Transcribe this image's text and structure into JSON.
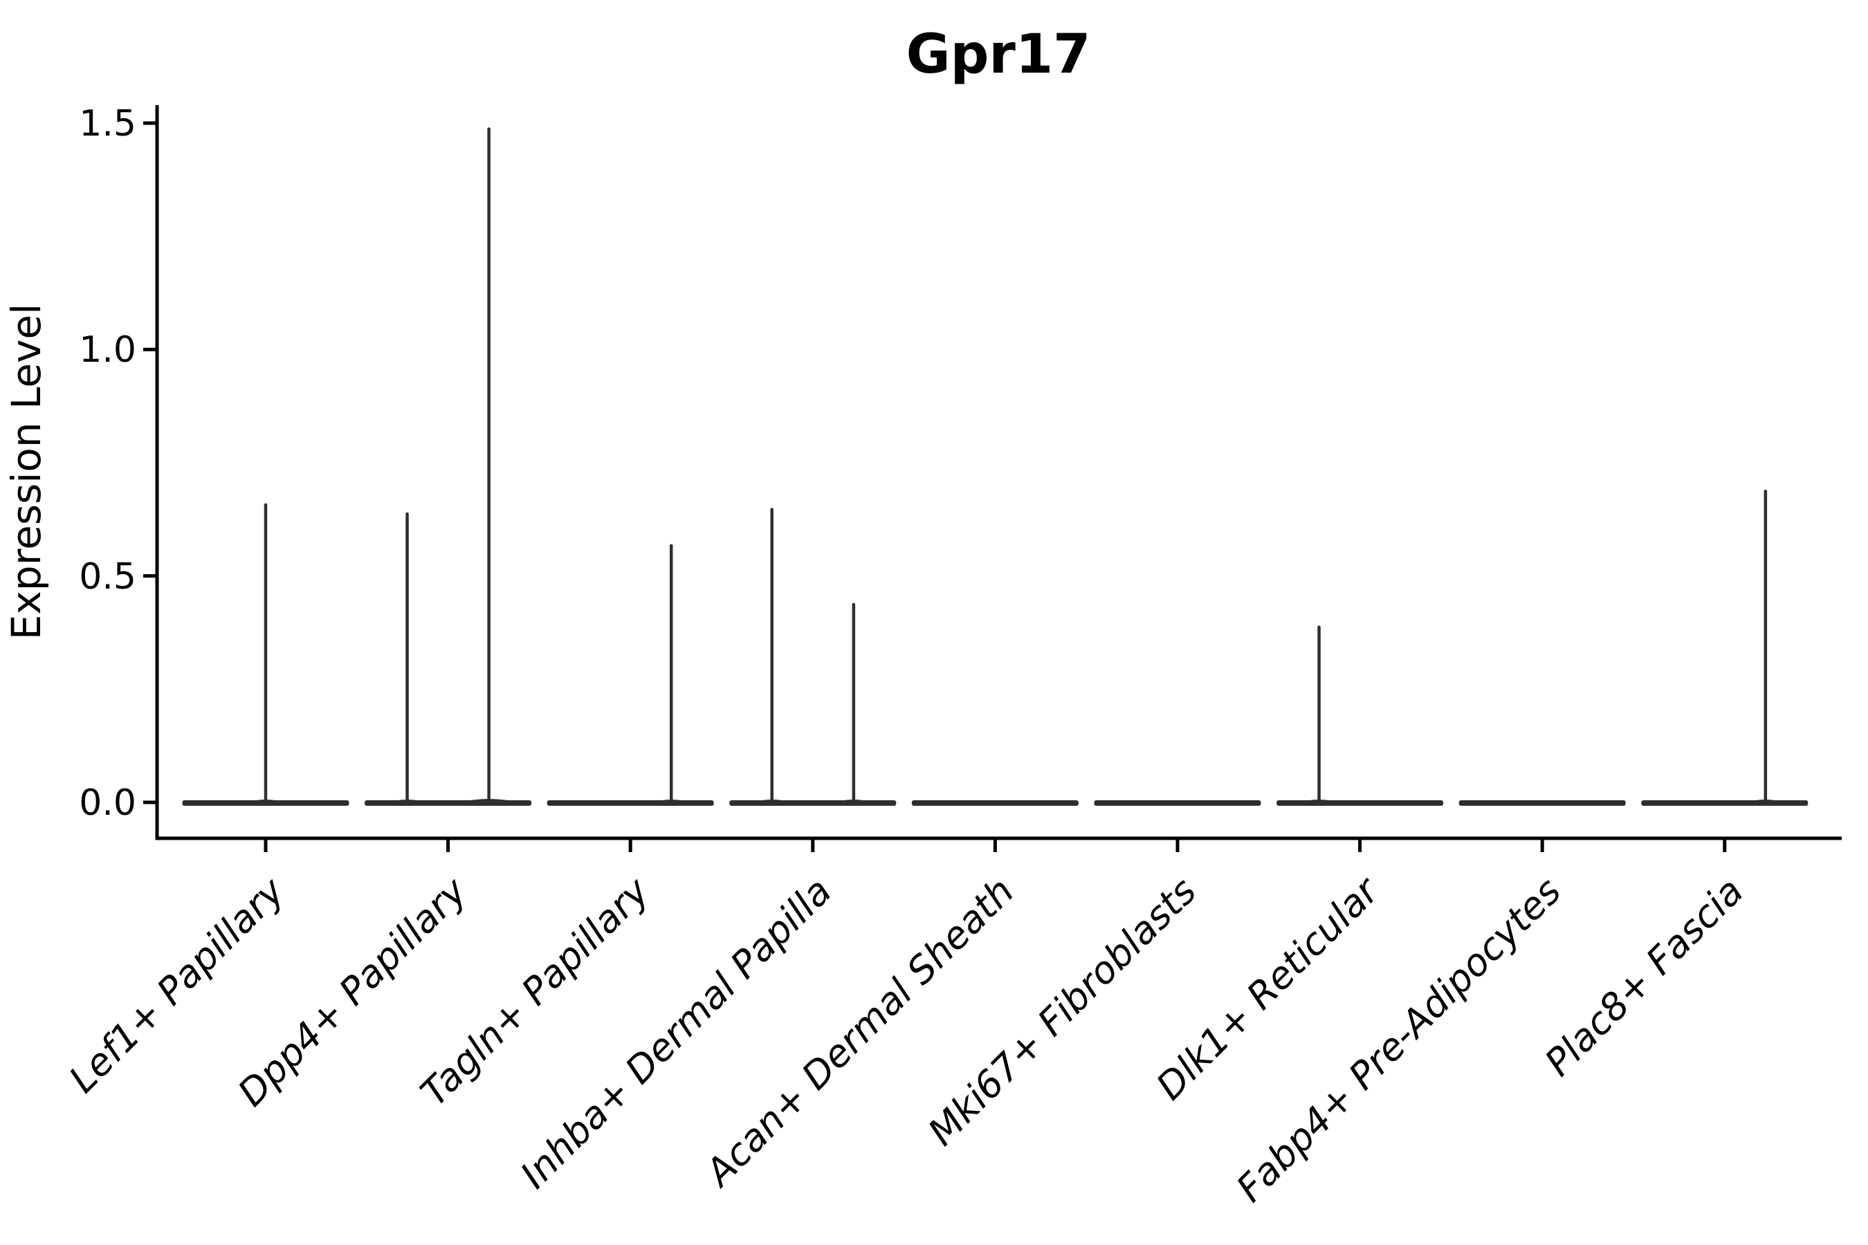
{
  "title": "Gpr17",
  "y_axis": {
    "label": "Expression Level",
    "tick_labels": [
      "0.0",
      "0.5",
      "1.0",
      "1.5"
    ]
  },
  "x_axis": {
    "categories": [
      "Lef1+ Papillary",
      "Dpp4+ Papillary",
      "Tagln+ Papillary",
      "Inhba+ Dermal Papilla",
      "Acan+ Dermal Sheath",
      "Mki67+ Fibroblasts",
      "Dlk1+ Reticular",
      "Fabp4+ Pre-Adipocytes",
      "Plac8+ Fascia"
    ]
  },
  "chart_data": {
    "type": "violin",
    "title": "Gpr17",
    "xlabel": "",
    "ylabel": "Expression Level",
    "ylim": [
      0,
      1.5
    ],
    "y_ticks": [
      0.0,
      0.5,
      1.0,
      1.5
    ],
    "grid": false,
    "legend": null,
    "categories": [
      "Lef1+ Papillary",
      "Dpp4+ Papillary",
      "Tagln+ Papillary",
      "Inhba+ Dermal Papilla",
      "Acan+ Dermal Sheath",
      "Mki67+ Fibroblasts",
      "Dlk1+ Reticular",
      "Fabp4+ Pre-Adipocytes",
      "Plac8+ Fascia"
    ],
    "violins": [
      {
        "category": "Lef1+ Papillary",
        "baseline_value": 0.0,
        "spikes": [
          {
            "offset_frac": 0.0,
            "value": 0.66
          }
        ]
      },
      {
        "category": "Dpp4+ Papillary",
        "baseline_value": 0.0,
        "spikes": [
          {
            "offset_frac": -0.224,
            "value": 0.64
          },
          {
            "offset_frac": 0.224,
            "value": 1.49
          }
        ]
      },
      {
        "category": "Tagln+ Papillary",
        "baseline_value": 0.0,
        "spikes": [
          {
            "offset_frac": 0.224,
            "value": 0.57
          }
        ]
      },
      {
        "category": "Inhba+ Dermal Papilla",
        "baseline_value": 0.0,
        "spikes": [
          {
            "offset_frac": -0.224,
            "value": 0.65
          },
          {
            "offset_frac": 0.224,
            "value": 0.44
          }
        ]
      },
      {
        "category": "Acan+ Dermal Sheath",
        "baseline_value": 0.0,
        "spikes": []
      },
      {
        "category": "Mki67+ Fibroblasts",
        "baseline_value": 0.0,
        "spikes": []
      },
      {
        "category": "Dlk1+ Reticular",
        "baseline_value": 0.0,
        "spikes": [
          {
            "offset_frac": -0.224,
            "value": 0.39
          }
        ]
      },
      {
        "category": "Fabp4+ Pre-Adipocytes",
        "baseline_value": 0.0,
        "spikes": []
      },
      {
        "category": "Plac8+ Fascia",
        "baseline_value": 0.0,
        "spikes": [
          {
            "offset_frac": 0.224,
            "value": 0.69
          }
        ]
      }
    ],
    "colors": {
      "violin": "#2e2e2e",
      "axis": "#000000",
      "text": "#000000",
      "background": "#ffffff"
    }
  }
}
